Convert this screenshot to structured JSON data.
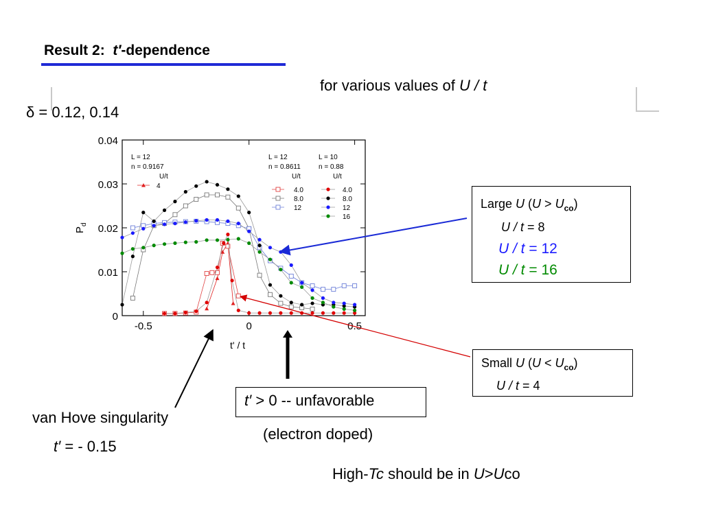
{
  "slide": {
    "title_prefix": "Result 2:",
    "title_symbol": "t′",
    "title_suffix": "-dependence",
    "subtitle_prefix": "for various values of ",
    "subtitle_var": "U / t",
    "delta_symbol": "δ",
    "delta_values": " = 0.12, 0.14",
    "large_box": {
      "line1_prefix": "Large ",
      "line1_U": "U",
      "line1_mid": "  (",
      "line1_U2": "U",
      "line1_gt": " > ",
      "line1_U3": "U",
      "line1_sub": "co",
      "line1_close": ")",
      "line2_var": "U / t",
      "line2_val": " = 8",
      "line3_var": "U / t",
      "line3_val": " = 12",
      "line4_var": "U / t",
      "line4_val": " = 16",
      "color_12": "#1a1aff",
      "color_16": "#008a00"
    },
    "small_box": {
      "line1_prefix": "Small  ",
      "line1_U": "U",
      "line1_mid": "  (",
      "line1_U2": "U",
      "line1_lt": " < ",
      "line1_U3": "U",
      "line1_sub": "co",
      "line1_close": ")",
      "line2_var": "U / t",
      "line2_val": " = 4"
    },
    "tprime_box": {
      "var": "t′",
      "text": " > 0 --  unfavorable"
    },
    "electron_doped": "(electron doped)",
    "vhs_label": "van Hove singularity",
    "vhs_var": "t′",
    "vhs_value": " = - 0.15",
    "hightc_prefix": "High-",
    "hightc_var": "Tc",
    "hightc_mid": " should be in  ",
    "hightc_U": "U",
    "hightc_gt": ">",
    "hightc_U2": "U",
    "hightc_suffix": "co",
    "arrow_blue": "#1a2ad6",
    "arrow_red": "#d40000"
  },
  "chart_data": {
    "type": "line",
    "xlabel": "t' / t",
    "ylabel": "P",
    "ylabel_sub": "d",
    "xlim": [
      -0.6,
      0.55
    ],
    "ylim": [
      0,
      0.04
    ],
    "xticks": [
      -0.5,
      0,
      0.5
    ],
    "xtick_labels": [
      "-0.5",
      "0",
      "0.5"
    ],
    "yticks": [
      0,
      0.01,
      0.02,
      0.03,
      0.04
    ],
    "ytick_labels": [
      "0",
      "0.01",
      "0.02",
      "0.03",
      "0.04"
    ],
    "legend": {
      "group1": [
        "L = 12",
        "n = 0.9167",
        "U/t"
      ],
      "group2": [
        "L = 12",
        "n = 0.8611",
        "U/t"
      ],
      "group3": [
        "L = 10",
        "n = 0.88",
        "U/t"
      ]
    },
    "series": [
      {
        "name": "4",
        "group": 1,
        "color": "#e02020",
        "marker": "tri-filled",
        "x": [
          -0.2,
          -0.15,
          -0.125,
          -0.1,
          -0.075
        ],
        "y": [
          0.0016,
          0.0085,
          0.0145,
          0.0165,
          0.0028
        ]
      },
      {
        "name": "4.0",
        "group": 2,
        "color": "#e04040",
        "marker": "square-open",
        "x": [
          -0.4,
          -0.35,
          -0.3,
          -0.25,
          -0.2,
          -0.175,
          -0.15,
          -0.125,
          -0.1,
          -0.05
        ],
        "y": [
          0.0005,
          0.0005,
          0.0006,
          0.0008,
          0.0096,
          0.0098,
          0.0098,
          0.0165,
          0.0158,
          0.0045
        ]
      },
      {
        "name": "8.0",
        "group": 2,
        "color": "#777777",
        "marker": "square-open",
        "x": [
          -0.55,
          -0.5,
          -0.45,
          -0.4,
          -0.35,
          -0.3,
          -0.25,
          -0.2,
          -0.15,
          -0.1,
          -0.05,
          0.0,
          0.05,
          0.1,
          0.15,
          0.2,
          0.25,
          0.3
        ],
        "y": [
          0.004,
          0.015,
          0.0205,
          0.021,
          0.023,
          0.025,
          0.0265,
          0.0275,
          0.0275,
          0.027,
          0.0245,
          0.0198,
          0.0092,
          0.0048,
          0.0028,
          0.002,
          0.0018,
          0.0015
        ]
      },
      {
        "name": "12",
        "group": 2,
        "color": "#6c7fd8",
        "marker": "square-open",
        "x": [
          -0.55,
          -0.5,
          -0.45,
          -0.4,
          -0.35,
          -0.3,
          -0.25,
          -0.2,
          -0.15,
          -0.1,
          -0.05,
          0.0,
          0.05,
          0.1,
          0.15,
          0.2,
          0.25,
          0.3,
          0.35,
          0.4,
          0.45,
          0.5
        ],
        "y": [
          0.02,
          0.0205,
          0.021,
          0.0212,
          0.0213,
          0.0214,
          0.0215,
          0.0214,
          0.0212,
          0.021,
          0.0205,
          0.0198,
          0.0155,
          0.0125,
          0.0108,
          0.009,
          0.0075,
          0.0068,
          0.006,
          0.006,
          0.0068,
          0.0068
        ]
      },
      {
        "name": "4.0",
        "group": 3,
        "color": "#e00000",
        "marker": "dot",
        "x": [
          -0.4,
          -0.35,
          -0.3,
          -0.25,
          -0.2,
          -0.15,
          -0.12,
          -0.1,
          -0.08,
          -0.05,
          0.0,
          0.05,
          0.1,
          0.15,
          0.2,
          0.25,
          0.3,
          0.35,
          0.4,
          0.45,
          0.5
        ],
        "y": [
          0.0005,
          0.0005,
          0.0007,
          0.001,
          0.003,
          0.011,
          0.0165,
          0.0185,
          0.008,
          0.0012,
          0.0006,
          0.0006,
          0.0006,
          0.0006,
          0.0006,
          0.0006,
          0.0006,
          0.0006,
          0.0006,
          0.0006,
          0.0006
        ]
      },
      {
        "name": "8.0",
        "group": 3,
        "color": "#000000",
        "marker": "dot",
        "x": [
          -0.6,
          -0.55,
          -0.5,
          -0.45,
          -0.4,
          -0.35,
          -0.3,
          -0.25,
          -0.2,
          -0.15,
          -0.1,
          -0.05,
          0.0,
          0.05,
          0.1,
          0.15,
          0.2,
          0.25,
          0.3,
          0.35,
          0.4,
          0.45,
          0.5
        ],
        "y": [
          0.0025,
          0.0135,
          0.0235,
          0.0215,
          0.024,
          0.026,
          0.0282,
          0.0295,
          0.0305,
          0.0298,
          0.0288,
          0.0272,
          0.0235,
          0.016,
          0.007,
          0.0045,
          0.003,
          0.0025,
          0.0028,
          0.0025,
          0.0025,
          0.0022,
          0.002
        ]
      },
      {
        "name": "12",
        "group": 3,
        "color": "#1a1aff",
        "marker": "dot",
        "x": [
          -0.6,
          -0.55,
          -0.5,
          -0.45,
          -0.4,
          -0.35,
          -0.3,
          -0.25,
          -0.2,
          -0.15,
          -0.1,
          -0.05,
          0.0,
          0.05,
          0.1,
          0.15,
          0.2,
          0.25,
          0.3,
          0.35,
          0.4,
          0.45,
          0.5
        ],
        "y": [
          0.0178,
          0.0188,
          0.0198,
          0.0205,
          0.0208,
          0.021,
          0.0213,
          0.0216,
          0.0218,
          0.0218,
          0.0215,
          0.021,
          0.0192,
          0.0173,
          0.0155,
          0.0145,
          0.0115,
          0.0075,
          0.0058,
          0.004,
          0.003,
          0.0028,
          0.0025
        ]
      },
      {
        "name": "16",
        "group": 3,
        "color": "#008a00",
        "marker": "dot",
        "x": [
          -0.6,
          -0.55,
          -0.5,
          -0.45,
          -0.4,
          -0.35,
          -0.3,
          -0.25,
          -0.2,
          -0.15,
          -0.1,
          -0.05,
          0.0,
          0.05,
          0.1,
          0.15,
          0.2,
          0.25,
          0.3,
          0.35,
          0.4,
          0.45,
          0.5
        ],
        "y": [
          0.0142,
          0.0152,
          0.0155,
          0.016,
          0.0163,
          0.0165,
          0.0167,
          0.0168,
          0.0172,
          0.0172,
          0.0173,
          0.0175,
          0.0165,
          0.0145,
          0.0128,
          0.0105,
          0.0075,
          0.0065,
          0.004,
          0.003,
          0.002,
          0.0015,
          0.0012
        ]
      }
    ]
  }
}
